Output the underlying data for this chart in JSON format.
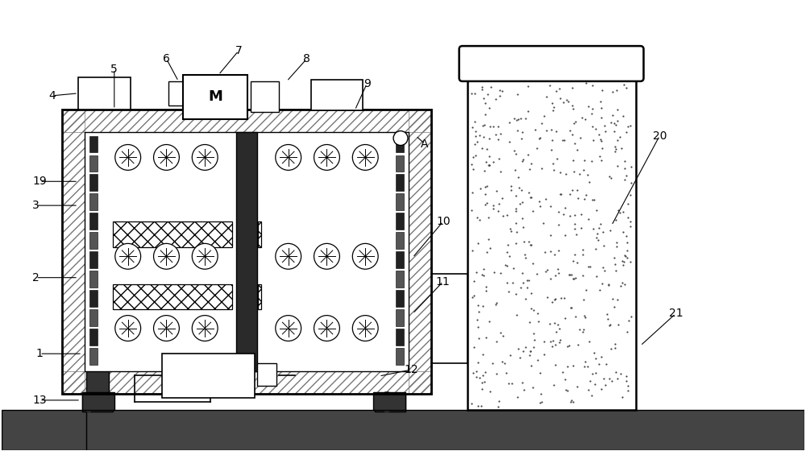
{
  "bg_color": "#ffffff",
  "fig_width": 10.0,
  "fig_height": 5.6
}
